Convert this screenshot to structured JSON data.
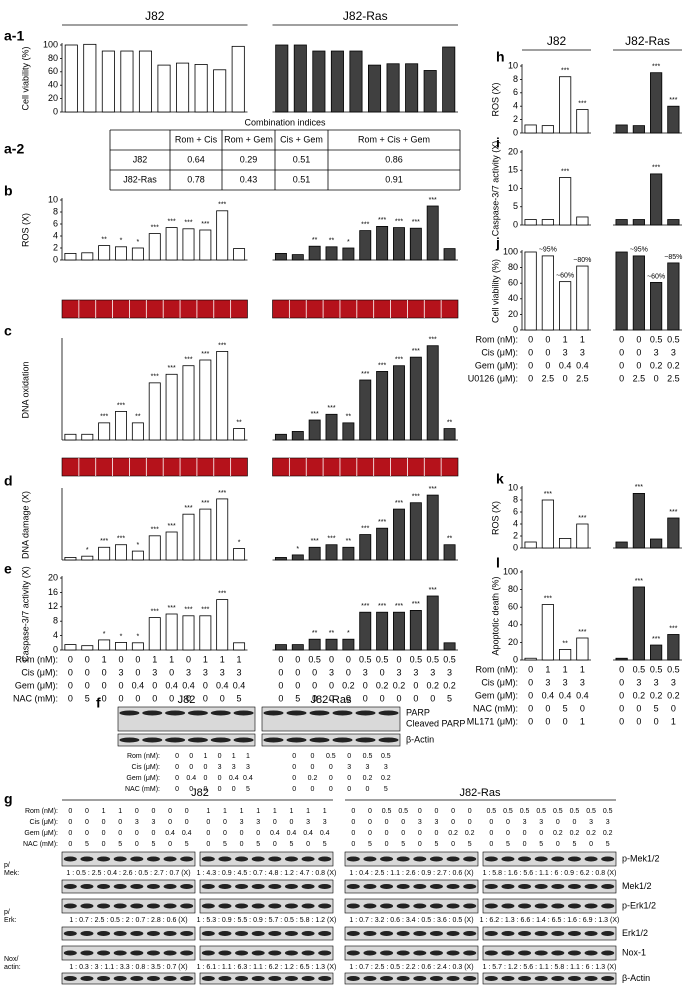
{
  "chart_data": [
    {
      "type": "bar",
      "panel": "a-1",
      "ylabel": "Cell viability (%)",
      "ylim": [
        0,
        100
      ],
      "yticks": [
        0,
        20,
        40,
        60,
        80,
        100
      ],
      "series": [
        {
          "name": "J82",
          "color": "#ffffff",
          "values": [
            100,
            101,
            91,
            91,
            91,
            70,
            73,
            71,
            63,
            98
          ]
        },
        {
          "name": "J82-Ras",
          "color": "#404040",
          "values": [
            100,
            100,
            91,
            91,
            91,
            70,
            72,
            72,
            62,
            97
          ]
        }
      ]
    },
    {
      "type": "bar",
      "panel": "b",
      "ylabel": "ROS (X)",
      "ylim": [
        0,
        10
      ],
      "yticks": [
        0,
        2,
        4,
        6,
        8,
        10
      ],
      "series": [
        {
          "color": "#ffffff",
          "values": [
            1.1,
            1.2,
            2.4,
            2.2,
            2.0,
            4.4,
            5.4,
            5.2,
            5.0,
            8.2,
            1.9
          ],
          "stars": [
            null,
            null,
            "**",
            "*",
            "*",
            "***",
            "***",
            "***",
            "***",
            "***",
            null
          ]
        },
        {
          "color": "#404040",
          "values": [
            1.1,
            0.9,
            2.3,
            2.2,
            2.0,
            4.9,
            5.6,
            5.4,
            5.3,
            9.0,
            1.9
          ],
          "stars": [
            null,
            null,
            "**",
            "**",
            "*",
            "***",
            "***",
            "***",
            "***",
            "***",
            null
          ]
        }
      ]
    },
    {
      "type": "bar",
      "panel": "c",
      "ylabel": "DNA oxidation",
      "ylim": [
        0,
        35
      ],
      "yticks": [],
      "series": [
        {
          "color": "#ffffff",
          "values": [
            2,
            2,
            6,
            10,
            6,
            20,
            23,
            26,
            28,
            31,
            4
          ],
          "stars": [
            null,
            null,
            "***",
            "***",
            "**",
            "***",
            "***",
            "***",
            "***",
            "***",
            "**"
          ]
        },
        {
          "color": "#404040",
          "values": [
            2,
            3,
            7,
            9,
            6,
            21,
            24,
            26,
            29,
            33,
            4
          ],
          "stars": [
            null,
            null,
            "***",
            "***",
            "**",
            "***",
            "***",
            "***",
            "***",
            "***",
            "**"
          ]
        }
      ]
    },
    {
      "type": "bar",
      "panel": "d",
      "ylabel": "DNA damage (X)",
      "ylim": [
        0,
        55
      ],
      "yticks": [],
      "series": [
        {
          "color": "#ffffff",
          "values": [
            2,
            3,
            10,
            12,
            7,
            19,
            22,
            36,
            40,
            48,
            9
          ],
          "stars": [
            null,
            "*",
            "***",
            "***",
            "*",
            "***",
            "***",
            "***",
            "***",
            "***",
            "*"
          ]
        },
        {
          "color": "#404040",
          "values": [
            2,
            4,
            10,
            12,
            10,
            20,
            25,
            40,
            45,
            51,
            12
          ],
          "stars": [
            null,
            "*",
            "***",
            "***",
            "**",
            "***",
            "***",
            "***",
            "***",
            "***",
            "**"
          ]
        }
      ]
    },
    {
      "type": "bar",
      "panel": "e",
      "ylabel": "Caspase-3/7 activity (X)",
      "ylim": [
        0,
        20
      ],
      "yticks": [
        0,
        4,
        8,
        12,
        16,
        20
      ],
      "series": [
        {
          "color": "#ffffff",
          "values": [
            1.5,
            1.2,
            2.8,
            2.1,
            2.0,
            9,
            10,
            9.5,
            9.5,
            14,
            2
          ],
          "stars": [
            null,
            null,
            "*",
            "*",
            "*",
            "***",
            "***",
            "***",
            "***",
            "***",
            null
          ]
        },
        {
          "color": "#404040",
          "values": [
            1.5,
            1.5,
            3,
            3,
            3,
            10.5,
            10.5,
            10.5,
            11,
            15,
            2
          ],
          "stars": [
            null,
            null,
            "**",
            "**",
            "*",
            "***",
            "***",
            "***",
            "***",
            "***",
            null
          ]
        }
      ],
      "conditions": [
        {
          "label": "Rom (nM):",
          "values": [
            [
              0,
              0,
              1,
              0,
              0,
              1,
              1,
              0,
              1,
              1,
              1
            ],
            [
              0,
              0,
              0.5,
              0,
              0,
              0.5,
              0.5,
              0,
              0.5,
              0.5,
              0.5
            ]
          ]
        },
        {
          "label": "Cis (μM):",
          "values": [
            [
              0,
              0,
              0,
              3,
              0,
              3,
              0,
              3,
              3,
              3,
              3
            ],
            [
              0,
              0,
              0,
              3,
              0,
              3,
              0,
              3,
              3,
              3,
              3
            ]
          ]
        },
        {
          "label": "Gem (μM):",
          "values": [
            [
              0,
              0,
              0,
              0,
              0.4,
              0,
              0.4,
              0.4,
              0,
              0.4,
              0.4
            ],
            [
              0,
              0,
              0,
              0,
              0.2,
              0,
              0.2,
              0.2,
              0,
              0.2,
              0.2
            ]
          ]
        },
        {
          "label": "NAC (mM):",
          "values": [
            [
              0,
              5,
              0,
              0,
              0,
              0,
              0,
              0,
              0,
              0,
              5
            ],
            [
              0,
              5,
              0,
              0,
              0,
              0,
              0,
              0,
              0,
              0,
              5
            ]
          ]
        }
      ]
    },
    {
      "type": "bar",
      "panel": "h",
      "ylabel": "ROS (X)",
      "ylim": [
        0,
        10
      ],
      "yticks": [
        0,
        2,
        4,
        6,
        8,
        10
      ],
      "series": [
        {
          "name": "J82",
          "color": "#ffffff",
          "values": [
            1.2,
            1.1,
            8.4,
            3.5
          ],
          "stars": [
            null,
            null,
            "***",
            "***"
          ]
        },
        {
          "name": "J82-Ras",
          "color": "#404040",
          "values": [
            1.2,
            1.1,
            9.0,
            4.0
          ],
          "stars": [
            null,
            null,
            "***",
            "***"
          ]
        }
      ]
    },
    {
      "type": "bar",
      "panel": "i",
      "ylabel": "Caspase-3/7 activity (X)",
      "ylim": [
        0,
        20
      ],
      "yticks": [
        0,
        5,
        10,
        15,
        20
      ],
      "series": [
        {
          "color": "#ffffff",
          "values": [
            1.5,
            1.5,
            13,
            2.2
          ],
          "stars": [
            null,
            null,
            "***",
            null
          ]
        },
        {
          "color": "#404040",
          "values": [
            1.5,
            1.5,
            14,
            1.5
          ],
          "stars": [
            null,
            null,
            "***",
            null
          ]
        }
      ]
    },
    {
      "type": "bar",
      "panel": "j",
      "ylabel": "Cell viability (%)",
      "ylim": [
        0,
        100
      ],
      "yticks": [
        0,
        20,
        40,
        60,
        80,
        100
      ],
      "series": [
        {
          "color": "#ffffff",
          "values": [
            100,
            95,
            62,
            82
          ],
          "stars": [
            null,
            "~95%",
            "~60%",
            "~80%"
          ]
        },
        {
          "color": "#404040",
          "values": [
            100,
            95,
            61,
            86
          ],
          "stars": [
            null,
            "~95%",
            "~60%",
            "~85%"
          ]
        }
      ],
      "conditions": [
        {
          "label": "Rom (nM):",
          "values": [
            [
              0,
              0,
              1,
              1
            ],
            [
              0,
              0,
              0.5,
              0.5
            ]
          ]
        },
        {
          "label": "Cis (μM):",
          "values": [
            [
              0,
              0,
              3,
              3
            ],
            [
              0,
              0,
              3,
              3
            ]
          ]
        },
        {
          "label": "Gem (μM):",
          "values": [
            [
              0,
              0,
              0.4,
              0.4
            ],
            [
              0,
              0,
              0.2,
              0.2
            ]
          ]
        },
        {
          "label": "U0126 (μM):",
          "values": [
            [
              0,
              2.5,
              0,
              2.5
            ],
            [
              0,
              2.5,
              0,
              2.5
            ]
          ]
        }
      ]
    },
    {
      "type": "bar",
      "panel": "k",
      "ylabel": "ROS (X)",
      "ylim": [
        0,
        10
      ],
      "yticks": [
        0,
        2,
        4,
        6,
        8,
        10
      ],
      "series": [
        {
          "color": "#ffffff",
          "values": [
            1,
            8,
            1.6,
            4
          ],
          "stars": [
            null,
            "***",
            null,
            "***"
          ]
        },
        {
          "color": "#404040",
          "values": [
            1,
            9.1,
            1.5,
            5
          ],
          "stars": [
            null,
            "***",
            null,
            "***"
          ]
        }
      ]
    },
    {
      "type": "bar",
      "panel": "l",
      "ylabel": "Apoptotic death (%)",
      "ylim": [
        0,
        100
      ],
      "yticks": [
        0,
        20,
        40,
        60,
        80,
        100
      ],
      "series": [
        {
          "color": "#ffffff",
          "values": [
            2,
            63,
            12,
            25
          ],
          "stars": [
            null,
            "***",
            "**",
            "***"
          ]
        },
        {
          "color": "#404040",
          "values": [
            2,
            83,
            17,
            29
          ],
          "stars": [
            null,
            "***",
            "***",
            "***"
          ]
        }
      ],
      "conditions": [
        {
          "label": "Rom (nM):",
          "values": [
            [
              0,
              1,
              1,
              1
            ],
            [
              0,
              0.5,
              0.5,
              0.5
            ]
          ]
        },
        {
          "label": "Cis (μM):",
          "values": [
            [
              0,
              3,
              3,
              3
            ],
            [
              0,
              3,
              3,
              3
            ]
          ]
        },
        {
          "label": "Gem (μM):",
          "values": [
            [
              0,
              0.4,
              0.4,
              0.4
            ],
            [
              0,
              0.2,
              0.2,
              0.2
            ]
          ]
        },
        {
          "label": "NAC (mM):",
          "values": [
            [
              0,
              0,
              5,
              0
            ],
            [
              0,
              0,
              5,
              0
            ]
          ]
        },
        {
          "label": "ML171 (μM):",
          "values": [
            [
              0,
              0,
              0,
              1
            ],
            [
              0,
              0,
              0,
              1
            ]
          ]
        }
      ]
    }
  ],
  "table": {
    "label": "a-2",
    "caption": "Combination indices",
    "header": [
      "Rom + Cis",
      "Rom + Gem",
      "Cis + Gem",
      "Rom + Cis + Gem"
    ],
    "rows": [
      {
        "name": "J82",
        "values": [
          0.64,
          0.29,
          0.51,
          0.86
        ]
      },
      {
        "name": "J82-Ras",
        "values": [
          0.78,
          0.43,
          0.51,
          0.91
        ]
      }
    ]
  },
  "blot_f": {
    "label": "f",
    "groups": [
      "J82",
      "J82-Ras"
    ],
    "bands": [
      "PARP",
      "Cleaved PARP",
      "β-Actin"
    ],
    "conditions": [
      {
        "label": "Rom (nM):",
        "values": [
          [
            0,
            0,
            1,
            0,
            1,
            1
          ],
          [
            0,
            0,
            0.5,
            0,
            0.5,
            0.5
          ]
        ]
      },
      {
        "label": "Cis (μM):",
        "values": [
          [
            0,
            0,
            0,
            3,
            3,
            3
          ],
          [
            0,
            0,
            0,
            3,
            3,
            3
          ]
        ]
      },
      {
        "label": "Gem (μM):",
        "values": [
          [
            0,
            0.4,
            0,
            0,
            0.4,
            0.4
          ],
          [
            0,
            0.2,
            0,
            0,
            0.2,
            0.2
          ]
        ]
      },
      {
        "label": "NAC (mM):",
        "values": [
          [
            0,
            0,
            0,
            0,
            0,
            5
          ],
          [
            0,
            0,
            0,
            0,
            0,
            5
          ]
        ]
      }
    ]
  },
  "blot_g": {
    "label": "g",
    "groups": [
      "J82",
      "J82-Ras"
    ],
    "conditions": [
      {
        "label": "Rom (nM):",
        "values": [
          [
            0,
            0,
            1,
            1,
            0,
            0,
            0,
            0,
            1,
            1,
            1,
            1,
            1,
            1,
            1,
            1
          ],
          [
            0,
            0,
            0.5,
            0.5,
            0,
            0,
            0,
            0,
            0.5,
            0.5,
            0.5,
            0.5,
            0.5,
            0.5,
            0.5,
            0.5
          ]
        ]
      },
      {
        "label": "Cis (μM):",
        "values": [
          [
            0,
            0,
            0,
            0,
            3,
            3,
            0,
            0,
            0,
            0,
            3,
            3,
            0,
            0,
            3,
            3
          ],
          [
            0,
            0,
            0,
            0,
            3,
            3,
            0,
            0,
            0,
            0,
            3,
            3,
            0,
            0,
            3,
            3
          ]
        ]
      },
      {
        "label": "Gem (μM):",
        "values": [
          [
            0,
            0,
            0,
            0,
            0,
            0,
            0.4,
            0.4,
            0,
            0,
            0,
            0,
            0.4,
            0.4,
            0.4,
            0.4
          ],
          [
            0,
            0,
            0,
            0,
            0,
            0,
            0.2,
            0.2,
            0,
            0,
            0,
            0,
            0.2,
            0.2,
            0.2,
            0.2
          ]
        ]
      },
      {
        "label": "NAC (mM):",
        "values": [
          [
            0,
            5,
            0,
            5,
            0,
            5,
            0,
            5,
            0,
            5,
            0,
            5,
            0,
            5,
            0,
            5
          ],
          [
            0,
            5,
            0,
            5,
            0,
            5,
            0,
            5,
            0,
            5,
            0,
            5,
            0,
            5,
            0,
            5
          ]
        ]
      }
    ],
    "bands": [
      "p-Mek1/2",
      "Mek1/2",
      "p-Erk1/2",
      "Erk1/2",
      "Nox-1",
      "β-Actin"
    ],
    "ratio_labels": [
      [
        "p/",
        "Mek:"
      ],
      [
        "p/",
        "Erk:"
      ],
      [
        "Nox/",
        "actin:"
      ]
    ],
    "quant": [
      [
        "1 : 0.5 : 2.5 : 0.4 : 2.6 : 0.5 : 2.7 : 0.7 (X)",
        "1 : 4.3 : 0.9 : 4.5 : 0.7 : 4.8 : 1.2 : 4.7 : 0.8 (X)",
        "1 : 0.4 : 2.5 : 1.1 : 2.6 : 0.9 : 2.7 : 0.6 (X)",
        "1 : 5.8 : 1.6 : 5.6 : 1.1 : 6 : 0.9 : 6.2 : 0.8 (X)"
      ],
      [
        "1 : 0.7 : 2.5 : 0.5 : 2 : 0.7 : 2.8 : 0.6 (X)",
        "1 : 5.3 : 0.9 : 5.5 : 0.9 : 5.7 : 0.5 : 5.8 : 1.2 (X)",
        "1 : 0.7 : 3.2 : 0.6 : 3.4 : 0.5 : 3.6 : 0.5 (X)",
        "1 : 6.2 : 1.3 : 6.6 : 1.4 : 6.5 : 1.6 : 6.9 : 1.3 (X)"
      ],
      [
        "1 : 0.3 : 3 : 1.1 : 3.3 : 0.8 : 3.5 : 0.7 (X)",
        "1 : 6.1 : 1.1 : 6.3 : 1.1 : 6.2 : 1.2 : 6.5 : 1.3 (X)",
        "1 : 0.7 : 2.5 : 0.5 : 2.2 : 0.6 : 2.4 : 0.3 (X)",
        "1 : 5.7 : 1.2 : 5.6 : 1.1 : 5.8 : 1.1 : 6 : 1.3 (X)"
      ]
    ]
  }
}
